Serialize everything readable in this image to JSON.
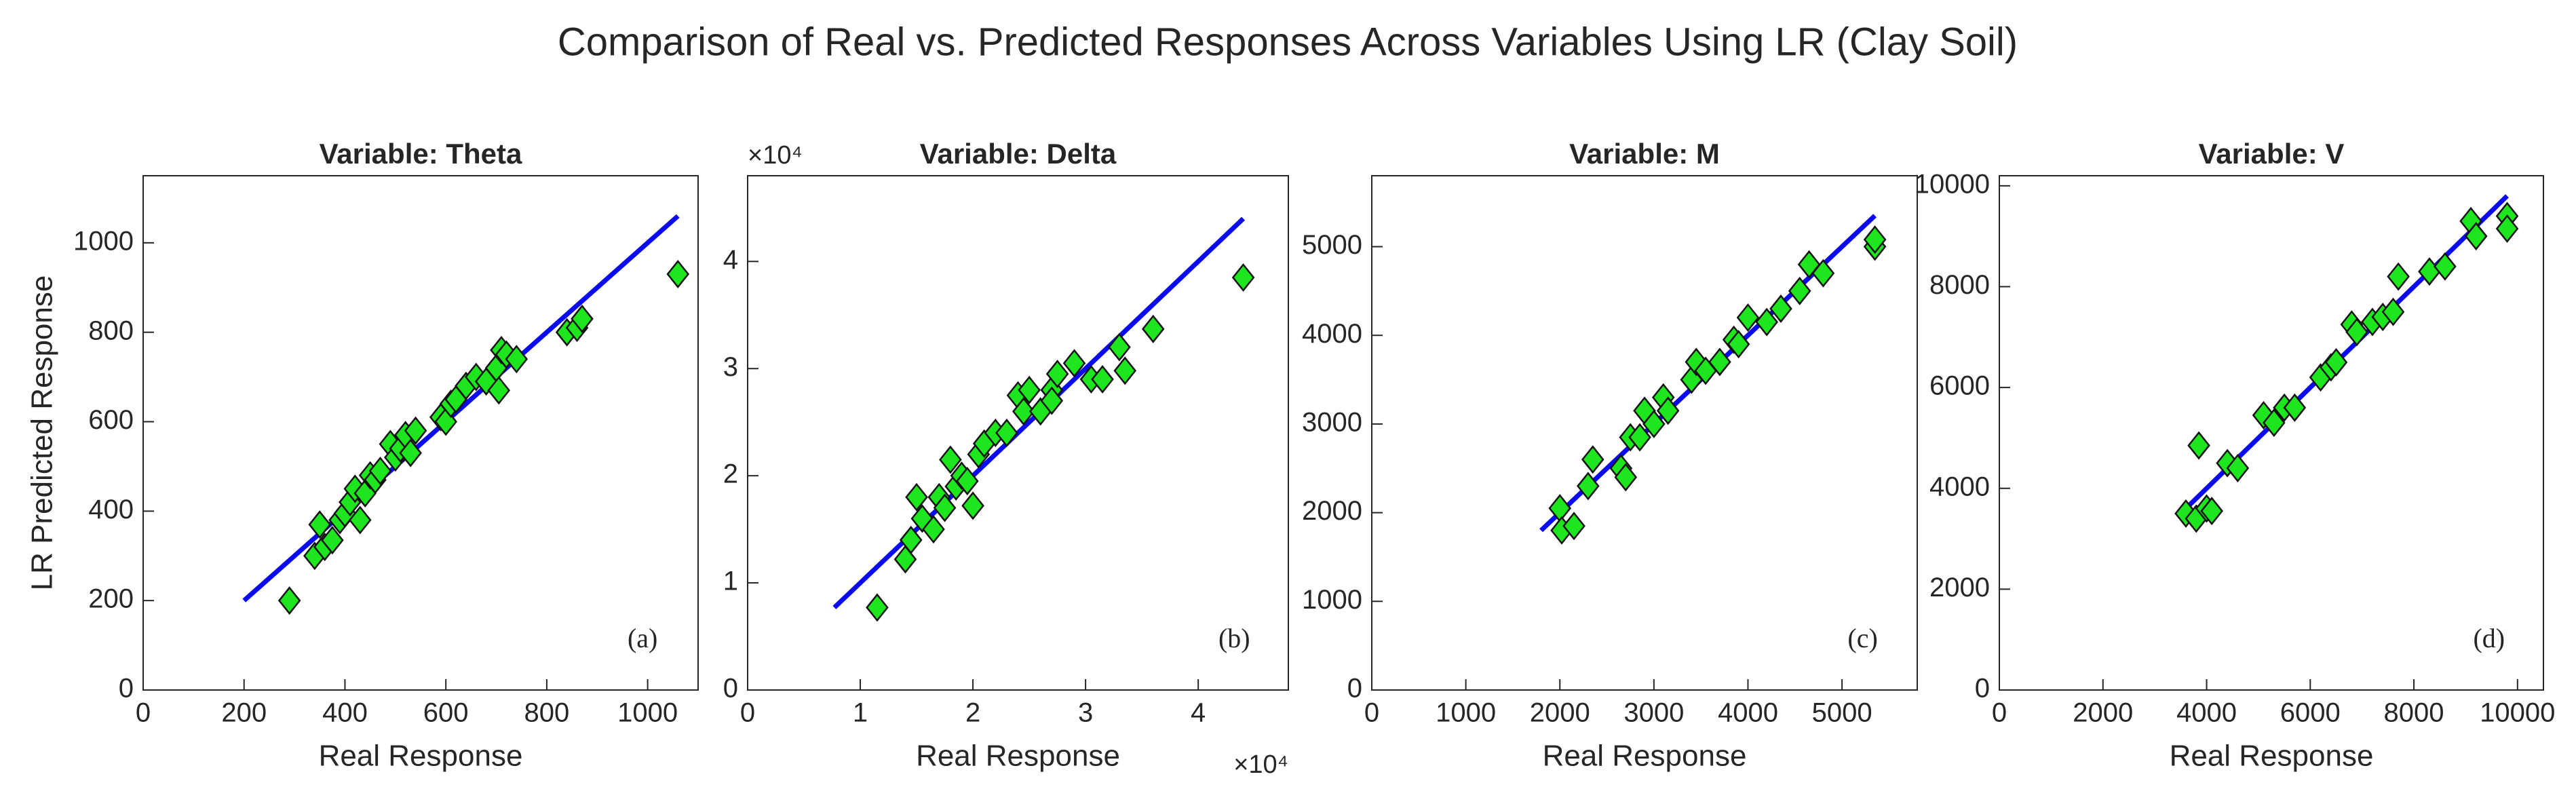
{
  "suptitle": "Comparison of Real vs. Predicted Responses Across Variables Using LR (Clay Soil)",
  "chart_data": [
    {
      "type": "scatter",
      "title": "Variable: Theta",
      "xlabel": "Real Response",
      "ylabel": "LR Predicted Response",
      "annotation": "(a)",
      "xlim": [
        0,
        1100
      ],
      "xticks": [
        0,
        200,
        400,
        600,
        800,
        1000
      ],
      "ylim": [
        0,
        1150
      ],
      "yticks": [
        0,
        200,
        400,
        600,
        800,
        1000
      ],
      "points": {
        "color": "#1ee61e",
        "x": [
          290,
          340,
          350,
          360,
          375,
          390,
          400,
          410,
          420,
          430,
          440,
          450,
          460,
          470,
          490,
          500,
          510,
          520,
          530,
          540,
          590,
          600,
          610,
          620,
          640,
          660,
          680,
          700,
          705,
          710,
          720,
          740,
          840,
          860,
          870,
          1060
        ],
        "y": [
          200,
          300,
          370,
          320,
          335,
          380,
          395,
          420,
          450,
          380,
          440,
          480,
          470,
          490,
          550,
          520,
          540,
          570,
          530,
          580,
          610,
          600,
          640,
          650,
          680,
          700,
          690,
          720,
          670,
          760,
          750,
          740,
          800,
          810,
          830,
          930
        ]
      },
      "line": {
        "color": "#0a0aef",
        "x": [
          200,
          1060
        ],
        "y": [
          200,
          1060
        ]
      }
    },
    {
      "type": "scatter",
      "title": "Variable: Delta",
      "xlabel": "Real Response",
      "annotation": "(b)",
      "x_multiplier": "×10⁴",
      "y_multiplier": "×10⁴",
      "xlim": [
        0,
        48000
      ],
      "xticks": [
        0,
        {
          "value": 10000,
          "label": "1"
        },
        {
          "value": 20000,
          "label": "2"
        },
        {
          "value": 30000,
          "label": "3"
        },
        {
          "value": 40000,
          "label": "4"
        }
      ],
      "ylim": [
        0,
        48000
      ],
      "yticks": [
        0,
        {
          "value": 10000,
          "label": "1"
        },
        {
          "value": 20000,
          "label": "2"
        },
        {
          "value": 30000,
          "label": "3"
        },
        {
          "value": 40000,
          "label": "4"
        }
      ],
      "points": {
        "color": "#1ee61e",
        "x": [
          11500,
          14000,
          14500,
          15000,
          15500,
          16500,
          17000,
          17500,
          18000,
          18500,
          19000,
          19500,
          20000,
          20500,
          21000,
          22000,
          23000,
          24000,
          24500,
          25000,
          26000,
          27000,
          27500,
          27000,
          29000,
          30500,
          31500,
          33000,
          33500,
          36000,
          44000
        ],
        "y": [
          7700,
          12200,
          14000,
          18000,
          16000,
          15000,
          18000,
          17000,
          21500,
          19000,
          20000,
          19500,
          17200,
          22000,
          23000,
          24000,
          24000,
          27500,
          26000,
          28000,
          26000,
          28000,
          29500,
          27000,
          30500,
          29000,
          29000,
          32000,
          29800,
          33700,
          38500
        ]
      },
      "line": {
        "color": "#0a0aef",
        "x": [
          7700,
          44000
        ],
        "y": [
          7700,
          44000
        ]
      }
    },
    {
      "type": "scatter",
      "title": "Variable: M",
      "xlabel": "Real Response",
      "annotation": "(c)",
      "xlim": [
        0,
        5800
      ],
      "xticks": [
        0,
        1000,
        2000,
        3000,
        4000,
        5000
      ],
      "ylim": [
        0,
        5800
      ],
      "yticks": [
        0,
        1000,
        2000,
        3000,
        4000,
        5000
      ],
      "points": {
        "color": "#1ee61e",
        "x": [
          2000,
          2020,
          2150,
          2300,
          2350,
          2650,
          2700,
          2750,
          2850,
          2900,
          3000,
          3100,
          3150,
          3400,
          3450,
          3550,
          3700,
          3850,
          3900,
          4000,
          4200,
          4350,
          4550,
          4650,
          4800,
          5350,
          5350
        ],
        "y": [
          2050,
          1800,
          1850,
          2300,
          2600,
          2500,
          2400,
          2850,
          2850,
          3150,
          3000,
          3300,
          3150,
          3500,
          3700,
          3600,
          3700,
          3950,
          3900,
          4200,
          4150,
          4300,
          4500,
          4800,
          4700,
          5000,
          5080
        ]
      },
      "line": {
        "color": "#0a0aef",
        "x": [
          1800,
          5350
        ],
        "y": [
          1800,
          5350
        ]
      }
    },
    {
      "type": "scatter",
      "title": "Variable: V",
      "xlabel": "Real Response",
      "annotation": "(d)",
      "xlim": [
        0,
        10500
      ],
      "xticks": [
        0,
        2000,
        4000,
        6000,
        8000,
        10000
      ],
      "ylim": [
        0,
        10200
      ],
      "yticks": [
        0,
        2000,
        4000,
        6000,
        8000,
        10000
      ],
      "points": {
        "color": "#1ee61e",
        "x": [
          3600,
          3800,
          3850,
          4000,
          4100,
          4400,
          4600,
          5100,
          5300,
          5500,
          5700,
          6200,
          6400,
          6500,
          6800,
          6900,
          7200,
          7400,
          7600,
          7700,
          8300,
          8600,
          9100,
          9200,
          9800,
          9800
        ],
        "y": [
          3500,
          3400,
          4850,
          3600,
          3550,
          4500,
          4400,
          5450,
          5300,
          5600,
          5600,
          6200,
          6400,
          6500,
          7250,
          7100,
          7300,
          7400,
          7500,
          8200,
          8300,
          8400,
          9300,
          9000,
          9400,
          9150
        ]
      },
      "line": {
        "color": "#0a0aef",
        "x": [
          3600,
          9800
        ],
        "y": [
          3600,
          9800
        ]
      }
    }
  ]
}
